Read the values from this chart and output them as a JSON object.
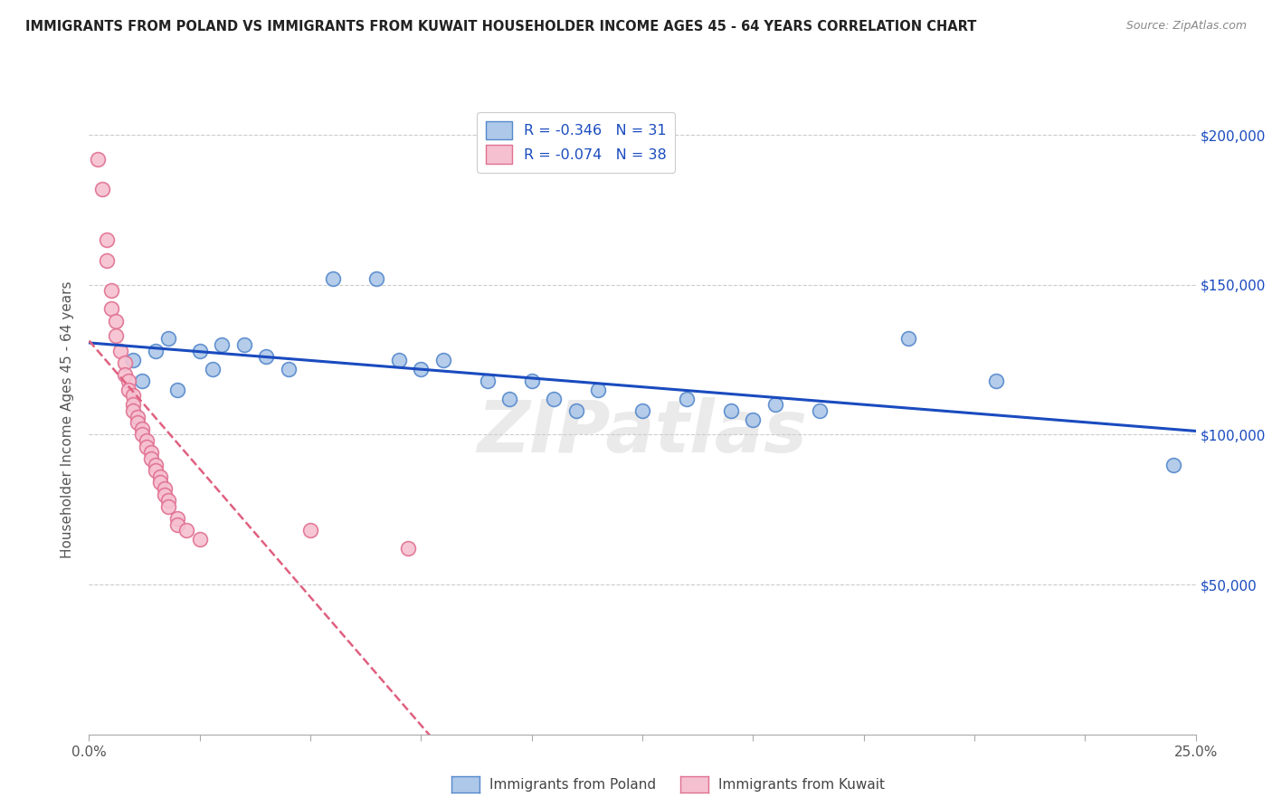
{
  "title": "IMMIGRANTS FROM POLAND VS IMMIGRANTS FROM KUWAIT HOUSEHOLDER INCOME AGES 45 - 64 YEARS CORRELATION CHART",
  "source": "Source: ZipAtlas.com",
  "ylabel": "Householder Income Ages 45 - 64 years",
  "x_min": 0.0,
  "x_max": 0.25,
  "y_min": 0,
  "y_max": 210000,
  "poland_color": "#adc8e8",
  "poland_edge_color": "#5588cc",
  "kuwait_color": "#f5c0d0",
  "kuwait_edge_color": "#e07090",
  "poland_line_color": "#1a4bbf",
  "kuwait_line_color": "#e06080",
  "poland_R": -0.346,
  "poland_N": 31,
  "kuwait_R": -0.074,
  "kuwait_N": 38,
  "poland_points": [
    [
      0.01,
      125000
    ],
    [
      0.012,
      118000
    ],
    [
      0.015,
      128000
    ],
    [
      0.018,
      132000
    ],
    [
      0.02,
      115000
    ],
    [
      0.025,
      128000
    ],
    [
      0.028,
      122000
    ],
    [
      0.03,
      130000
    ],
    [
      0.035,
      130000
    ],
    [
      0.04,
      126000
    ],
    [
      0.045,
      122000
    ],
    [
      0.055,
      152000
    ],
    [
      0.065,
      152000
    ],
    [
      0.07,
      125000
    ],
    [
      0.075,
      122000
    ],
    [
      0.08,
      125000
    ],
    [
      0.09,
      118000
    ],
    [
      0.095,
      112000
    ],
    [
      0.1,
      118000
    ],
    [
      0.105,
      112000
    ],
    [
      0.11,
      108000
    ],
    [
      0.115,
      115000
    ],
    [
      0.125,
      108000
    ],
    [
      0.135,
      112000
    ],
    [
      0.145,
      108000
    ],
    [
      0.15,
      105000
    ],
    [
      0.155,
      110000
    ],
    [
      0.165,
      108000
    ],
    [
      0.185,
      132000
    ],
    [
      0.205,
      118000
    ],
    [
      0.245,
      90000
    ]
  ],
  "kuwait_points": [
    [
      0.002,
      192000
    ],
    [
      0.003,
      182000
    ],
    [
      0.004,
      165000
    ],
    [
      0.004,
      158000
    ],
    [
      0.005,
      148000
    ],
    [
      0.005,
      142000
    ],
    [
      0.006,
      138000
    ],
    [
      0.006,
      133000
    ],
    [
      0.007,
      128000
    ],
    [
      0.008,
      124000
    ],
    [
      0.008,
      120000
    ],
    [
      0.009,
      118000
    ],
    [
      0.009,
      115000
    ],
    [
      0.01,
      113000
    ],
    [
      0.01,
      110000
    ],
    [
      0.01,
      108000
    ],
    [
      0.011,
      106000
    ],
    [
      0.011,
      104000
    ],
    [
      0.012,
      102000
    ],
    [
      0.012,
      100000
    ],
    [
      0.013,
      98000
    ],
    [
      0.013,
      96000
    ],
    [
      0.014,
      94000
    ],
    [
      0.014,
      92000
    ],
    [
      0.015,
      90000
    ],
    [
      0.015,
      88000
    ],
    [
      0.016,
      86000
    ],
    [
      0.016,
      84000
    ],
    [
      0.017,
      82000
    ],
    [
      0.017,
      80000
    ],
    [
      0.018,
      78000
    ],
    [
      0.018,
      76000
    ],
    [
      0.02,
      72000
    ],
    [
      0.02,
      70000
    ],
    [
      0.022,
      68000
    ],
    [
      0.025,
      65000
    ],
    [
      0.05,
      68000
    ],
    [
      0.072,
      62000
    ]
  ],
  "watermark": "ZIPatlas",
  "background_color": "#ffffff",
  "grid_color": "#cccccc",
  "right_y_ticks": [
    50000,
    100000,
    150000,
    200000
  ],
  "right_y_tick_labels": [
    "$50,000",
    "$100,000",
    "$150,000",
    "$200,000"
  ]
}
